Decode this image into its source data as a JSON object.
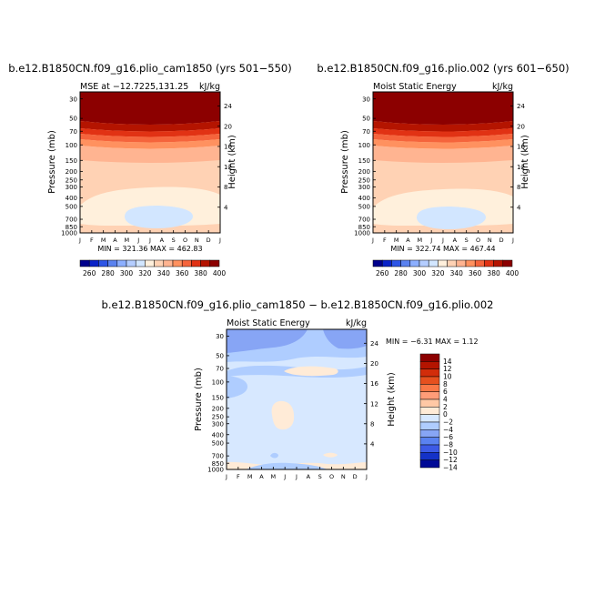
{
  "chart_data": [
    {
      "type": "heatmap",
      "title": "b.e12.B1850CN.f09_g16.plio_cam1850 (yrs 501−550)",
      "subtitle_left": "MSE at −12.7225,131.25",
      "units": "kJ/kg",
      "ylabel": "Pressure (mb)",
      "ylabel_right": "Height (km)",
      "x_ticks": [
        "J",
        "F",
        "M",
        "A",
        "M",
        "J",
        "J",
        "A",
        "S",
        "O",
        "N",
        "D",
        "J"
      ],
      "y_ticks": [
        "30",
        "50",
        "70",
        "100",
        "150",
        "200",
        "250",
        "300",
        "400",
        "500",
        "700",
        "850",
        "1000"
      ],
      "y_ticks_right": [
        "24",
        "20",
        "16",
        "12",
        "8",
        "4"
      ],
      "stats": "MIN =   321.36  MAX =   462.83",
      "levels": [
        "260",
        "280",
        "300",
        "320",
        "340",
        "360",
        "380",
        "400"
      ]
    },
    {
      "type": "heatmap",
      "title": "b.e12.B1850CN.f09_g16.plio.002 (yrs 601−650)",
      "subtitle_left": "Moist Static Energy",
      "units": "kJ/kg",
      "ylabel": "Pressure (mb)",
      "ylabel_right": "Height (km)",
      "x_ticks": [
        "J",
        "F",
        "M",
        "A",
        "M",
        "J",
        "J",
        "A",
        "S",
        "O",
        "N",
        "D",
        "J"
      ],
      "y_ticks": [
        "30",
        "50",
        "70",
        "100",
        "150",
        "200",
        "250",
        "300",
        "400",
        "500",
        "700",
        "850",
        "1000"
      ],
      "y_ticks_right": [
        "24",
        "20",
        "16",
        "12",
        "8",
        "4"
      ],
      "stats": "MIN =   322.74  MAX =   467.44",
      "levels": [
        "260",
        "280",
        "300",
        "320",
        "340",
        "360",
        "380",
        "400"
      ]
    },
    {
      "type": "heatmap",
      "title": "b.e12.B1850CN.f09_g16.plio_cam1850 − b.e12.B1850CN.f09_g16.plio.002",
      "subtitle_left": "Moist Static Energy",
      "units": "kJ/kg",
      "ylabel": "Pressure (mb)",
      "ylabel_right": "Height (km)",
      "x_ticks": [
        "J",
        "F",
        "M",
        "A",
        "M",
        "J",
        "J",
        "A",
        "S",
        "O",
        "N",
        "D",
        "J"
      ],
      "y_ticks": [
        "30",
        "50",
        "70",
        "100",
        "150",
        "200",
        "250",
        "300",
        "400",
        "500",
        "700",
        "850",
        "1000"
      ],
      "y_ticks_right": [
        "24",
        "20",
        "16",
        "12",
        "8",
        "4"
      ],
      "stats": "MIN =    −6.31  MAX =    1.12",
      "levels": [
        "14",
        "12",
        "10",
        "8",
        "6",
        "4",
        "2",
        "0",
        "−2",
        "−4",
        "−6",
        "−8",
        "−10",
        "−12",
        "−14"
      ]
    }
  ],
  "colors": {
    "abs": [
      "#00008c",
      "#0a23c8",
      "#2d55e6",
      "#5a82f0",
      "#8cafff",
      "#b4cdff",
      "#d2e6ff",
      "#fff0dc",
      "#ffd2b4",
      "#ffb491",
      "#ff915f",
      "#f5643c",
      "#e13214",
      "#b41400",
      "#8c0000"
    ],
    "diff": [
      "#8c0000",
      "#b41400",
      "#d22d0a",
      "#e6501e",
      "#fa7846",
      "#ff9c78",
      "#ffc8a5",
      "#ffebd7",
      "#d7e8ff",
      "#afcdff",
      "#87a5f5",
      "#5a82f0",
      "#3c5ae6",
      "#1432c8",
      "#000a96"
    ]
  }
}
